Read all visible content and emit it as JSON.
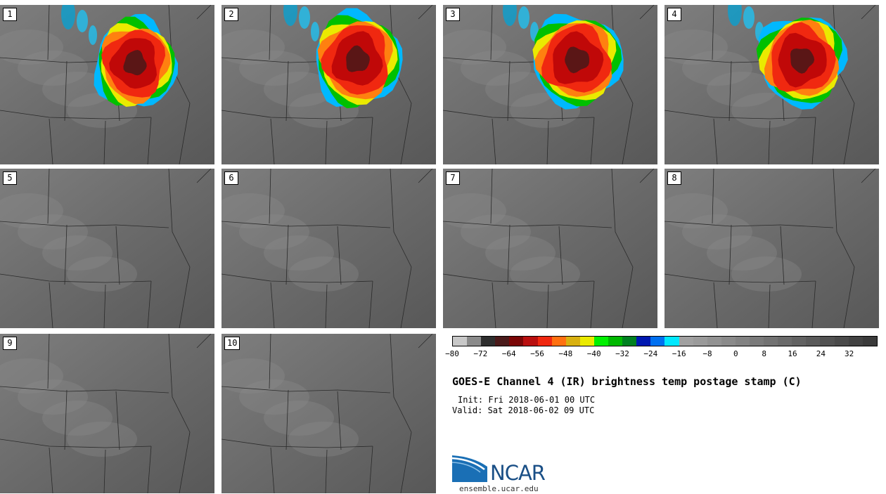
{
  "panels": [
    {
      "label": "1"
    },
    {
      "label": "2"
    },
    {
      "label": "3"
    },
    {
      "label": "4"
    },
    {
      "label": "5"
    },
    {
      "label": "6"
    },
    {
      "label": "7"
    },
    {
      "label": "8"
    },
    {
      "label": "9"
    },
    {
      "label": "10"
    }
  ],
  "colorbar": {
    "colors": [
      "#c8c8c8",
      "#8a8a8a",
      "#2e2e2e",
      "#4a1a1a",
      "#7a0606",
      "#b90f0f",
      "#f02810",
      "#ff7010",
      "#d8b010",
      "#eaea00",
      "#00f000",
      "#00b800",
      "#008020",
      "#0018b0",
      "#0070f0",
      "#00e8ff",
      "#a0a0a0",
      "#9a9a9a",
      "#929292",
      "#8a8a8a",
      "#828282",
      "#7a7a7a",
      "#727272",
      "#6a6a6a",
      "#626262",
      "#5a5a5a",
      "#525252",
      "#4a4a4a",
      "#424242",
      "#3a3a3a"
    ],
    "ticks": [
      "−80",
      "−72",
      "−64",
      "−56",
      "−48",
      "−40",
      "−32",
      "−24",
      "−16",
      "−8",
      "0",
      "8",
      "16",
      "24",
      "32"
    ]
  },
  "title": "GOES-E Channel 4 (IR) brightness temp postage stamp (C)",
  "init": "Init: Fri 2018-06-01 00 UTC",
  "valid": "Valid: Sat 2018-06-02 09 UTC",
  "logo": {
    "text": "NCAR",
    "url": "ensemble.ucar.edu"
  }
}
